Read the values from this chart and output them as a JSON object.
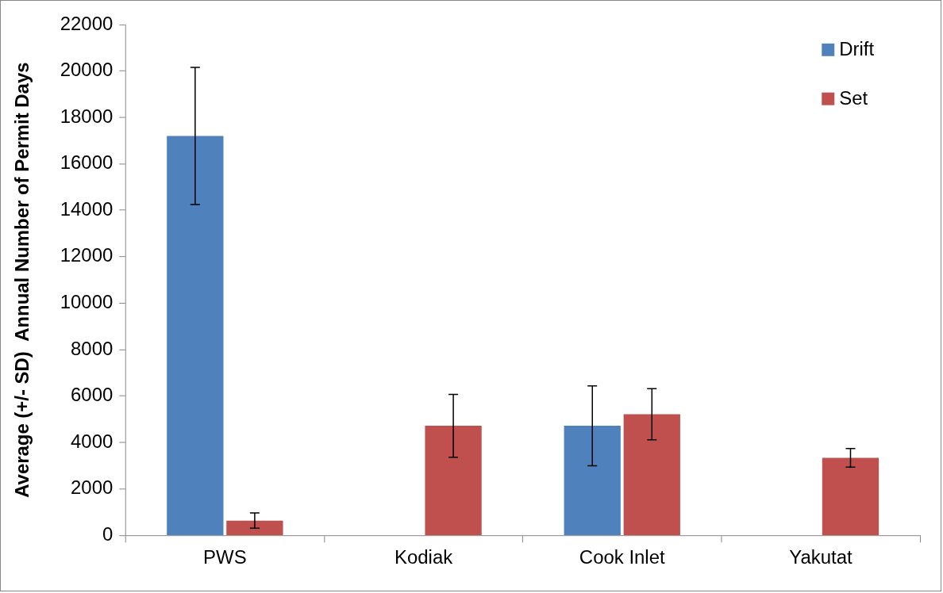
{
  "chart_data": {
    "type": "bar",
    "ylabel": "Average (+/- SD)  Annual Number of Permit Days",
    "categories": [
      "PWS",
      "Kodiak",
      "Cook Inlet",
      "Yakutat"
    ],
    "series": [
      {
        "name": "Drift",
        "color": "#4f81bd",
        "values": [
          17200,
          null,
          4720,
          null
        ],
        "errors": [
          2950,
          null,
          1720,
          null
        ]
      },
      {
        "name": "Set",
        "color": "#c0504d",
        "values": [
          640,
          4720,
          5220,
          3340
        ],
        "errors": [
          330,
          1350,
          1100,
          400
        ]
      }
    ],
    "ylim": [
      0,
      22000
    ],
    "yticks": [
      0,
      2000,
      4000,
      6000,
      8000,
      10000,
      12000,
      14000,
      16000,
      18000,
      20000,
      22000
    ],
    "grid": false,
    "legend": "top right"
  }
}
